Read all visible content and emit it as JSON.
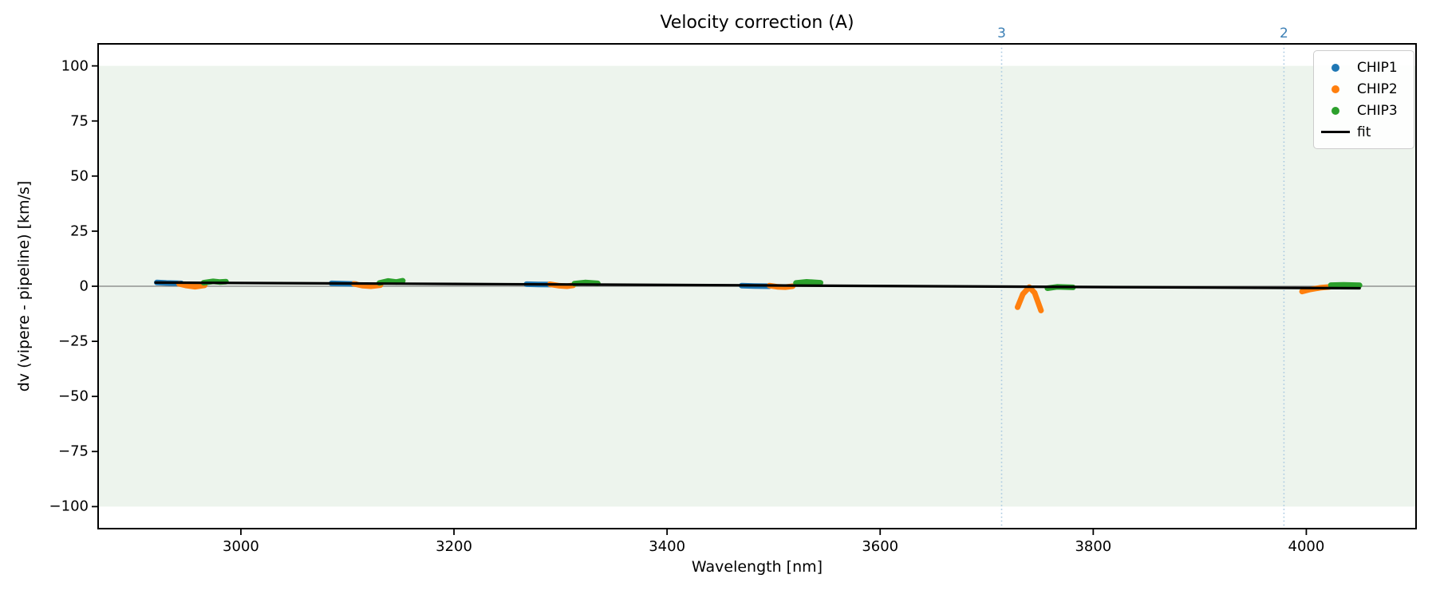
{
  "chart_data": {
    "type": "scatter",
    "title": "Velocity correction (A)",
    "xlabel": "Wavelength [nm]",
    "ylabel": "dv (vipere - pipeline) [km/s]",
    "xlim": [
      2866,
      4103
    ],
    "ylim": [
      -110,
      110
    ],
    "grid": false,
    "xticks": {
      "values": [
        3000,
        3200,
        3400,
        3600,
        3800,
        4000
      ],
      "labels": [
        "3000",
        "3200",
        "3400",
        "3600",
        "3800",
        "4000"
      ]
    },
    "yticks": {
      "values": [
        100,
        75,
        50,
        25,
        0,
        -25,
        -50,
        -75,
        -100
      ],
      "labels": [
        "100",
        "75",
        "50",
        "25",
        "0",
        "−25",
        "−50",
        "−75",
        "−100"
      ]
    },
    "band": {
      "ymin": -100,
      "ymax": 100,
      "color": "#edf4ed"
    },
    "zero_line": {
      "y": 0,
      "color": "#7f7f7f"
    },
    "vlines": [
      {
        "x": 3714,
        "label": "3"
      },
      {
        "x": 3979,
        "label": "2"
      }
    ],
    "vline_style": {
      "line_color": "#a5c6e0",
      "label_color": "#3b7fb5"
    },
    "series": [
      {
        "name": "CHIP1",
        "color": "#1f77b4",
        "segments": [
          [
            [
              2921,
              1.7
            ],
            [
              2930,
              1.5
            ],
            [
              2944,
              1.3
            ]
          ],
          [
            [
              3085,
              1.3
            ],
            [
              3095,
              1.15
            ],
            [
              3108,
              1.0
            ]
          ],
          [
            [
              3268,
              0.95
            ],
            [
              3279,
              0.85
            ],
            [
              3291,
              0.75
            ]
          ],
          [
            [
              3470,
              0.3
            ],
            [
              3482,
              0.1
            ],
            [
              3496,
              0.0
            ]
          ]
        ]
      },
      {
        "name": "CHIP2",
        "color": "#ff7f0e",
        "segments": [
          [
            [
              2942,
              1.1
            ],
            [
              2949,
              0.3
            ],
            [
              2957,
              -0.2
            ],
            [
              2966,
              0.4
            ]
          ],
          [
            [
              3106,
              1.1
            ],
            [
              3114,
              0.3
            ],
            [
              3122,
              0.0
            ],
            [
              3131,
              0.5
            ]
          ],
          [
            [
              3290,
              0.9
            ],
            [
              3299,
              0.2
            ],
            [
              3306,
              0.0
            ],
            [
              3312,
              0.4
            ]
          ],
          [
            [
              3496,
              0.3
            ],
            [
              3504,
              -0.3
            ],
            [
              3511,
              -0.4
            ],
            [
              3518,
              0.0
            ]
          ],
          [
            [
              3729,
              -9.5
            ],
            [
              3734,
              -3.5
            ],
            [
              3740,
              -0.4
            ],
            [
              3745,
              -3.0
            ],
            [
              3751,
              -11.0
            ]
          ],
          [
            [
              3996,
              -2.4
            ],
            [
              4004,
              -1.4
            ],
            [
              4013,
              -0.7
            ],
            [
              4022,
              -0.3
            ]
          ]
        ]
      },
      {
        "name": "CHIP3",
        "color": "#2ca02c",
        "segments": [
          [
            [
              2965,
              1.6
            ],
            [
              2974,
              2.2
            ],
            [
              2980,
              1.9
            ],
            [
              2986,
              2.1
            ]
          ],
          [
            [
              3130,
              1.5
            ],
            [
              3138,
              2.4
            ],
            [
              3146,
              1.9
            ],
            [
              3152,
              2.5
            ]
          ],
          [
            [
              3313,
              1.2
            ],
            [
              3323,
              1.7
            ],
            [
              3335,
              1.3
            ]
          ],
          [
            [
              3521,
              1.5
            ],
            [
              3531,
              2.0
            ],
            [
              3544,
              1.6
            ]
          ],
          [
            [
              3757,
              -0.9
            ],
            [
              3766,
              -0.3
            ],
            [
              3781,
              -0.5
            ]
          ],
          [
            [
              4023,
              0.5
            ],
            [
              4035,
              0.6
            ],
            [
              4050,
              0.45
            ]
          ]
        ]
      }
    ],
    "fit": {
      "name": "fit",
      "color": "#000000",
      "points": [
        [
          2920,
          1.65
        ],
        [
          3200,
          1.05
        ],
        [
          3500,
          0.35
        ],
        [
          3800,
          -0.35
        ],
        [
          4050,
          -0.9
        ]
      ]
    },
    "legend": {
      "position": "upper right",
      "entries": [
        {
          "label": "CHIP1",
          "type": "dot",
          "color": "#1f77b4"
        },
        {
          "label": "CHIP2",
          "type": "dot",
          "color": "#ff7f0e"
        },
        {
          "label": "CHIP3",
          "type": "dot",
          "color": "#2ca02c"
        },
        {
          "label": "fit",
          "type": "line",
          "color": "#000000"
        }
      ]
    }
  }
}
